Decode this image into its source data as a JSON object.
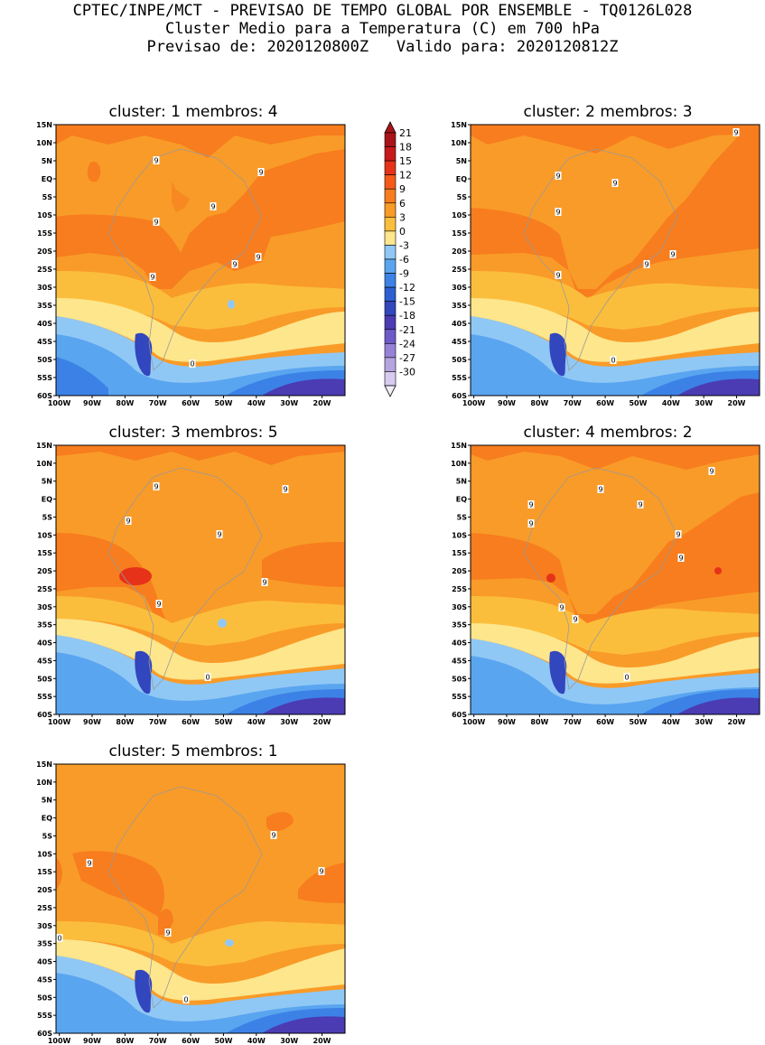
{
  "header": {
    "line1": "CPTEC/INPE/MCT - PREVISAO DE TEMPO GLOBAL POR ENSEMBLE - TQ0126L028",
    "line2": "Cluster Medio para a Temperatura (C) em 700 hPa",
    "line3": "Previsao de: 2020120800Z   Valido para: 2020120812Z"
  },
  "axes": {
    "lat_ticks": [
      "15N",
      "10N",
      "5N",
      "EQ",
      "5S",
      "10S",
      "15S",
      "20S",
      "25S",
      "30S",
      "35S",
      "40S",
      "45S",
      "50S",
      "55S",
      "60S"
    ],
    "lon_ticks": [
      "100W",
      "90W",
      "80W",
      "70W",
      "60W",
      "50W",
      "40W",
      "30W",
      "20W"
    ]
  },
  "colorbar": {
    "labels": [
      "21",
      "18",
      "15",
      "12",
      "9",
      "6",
      "3",
      "0",
      "-3",
      "-6",
      "-9",
      "-12",
      "-15",
      "-18",
      "-21",
      "-24",
      "-27",
      "-30"
    ],
    "colors": [
      "#a81419",
      "#c8191c",
      "#e63219",
      "#f55a19",
      "#f77d1e",
      "#f99b28",
      "#fbbe3c",
      "#fde68c",
      "#90c8f5",
      "#5aa5f0",
      "#3c82e6",
      "#2d5fd2",
      "#3246be",
      "#4b3cb4",
      "#6e5ac8",
      "#9682d7",
      "#b4a5e1",
      "#d7ccf0"
    ]
  },
  "panels": [
    {
      "title": "cluster: 1   membros: 4",
      "contour_labels": [
        "9",
        "9",
        "9",
        "9",
        "9",
        "9",
        "9",
        "0"
      ]
    },
    {
      "title": "cluster: 2   membros: 3",
      "contour_labels": [
        "9",
        "9",
        "9",
        "9",
        "9",
        "9",
        "9",
        "0"
      ]
    },
    {
      "title": "cluster: 3   membros: 5",
      "contour_labels": [
        "9",
        "9",
        "9",
        "9",
        "9",
        "9",
        "0"
      ]
    },
    {
      "title": "cluster: 4   membros: 2",
      "contour_labels": [
        "9",
        "9",
        "9",
        "9",
        "9",
        "9",
        "9",
        "9",
        "9",
        "0"
      ]
    },
    {
      "title": "cluster: 5   membros: 1",
      "contour_labels": [
        "9",
        "9",
        "9",
        "9",
        "0",
        "0"
      ]
    }
  ]
}
